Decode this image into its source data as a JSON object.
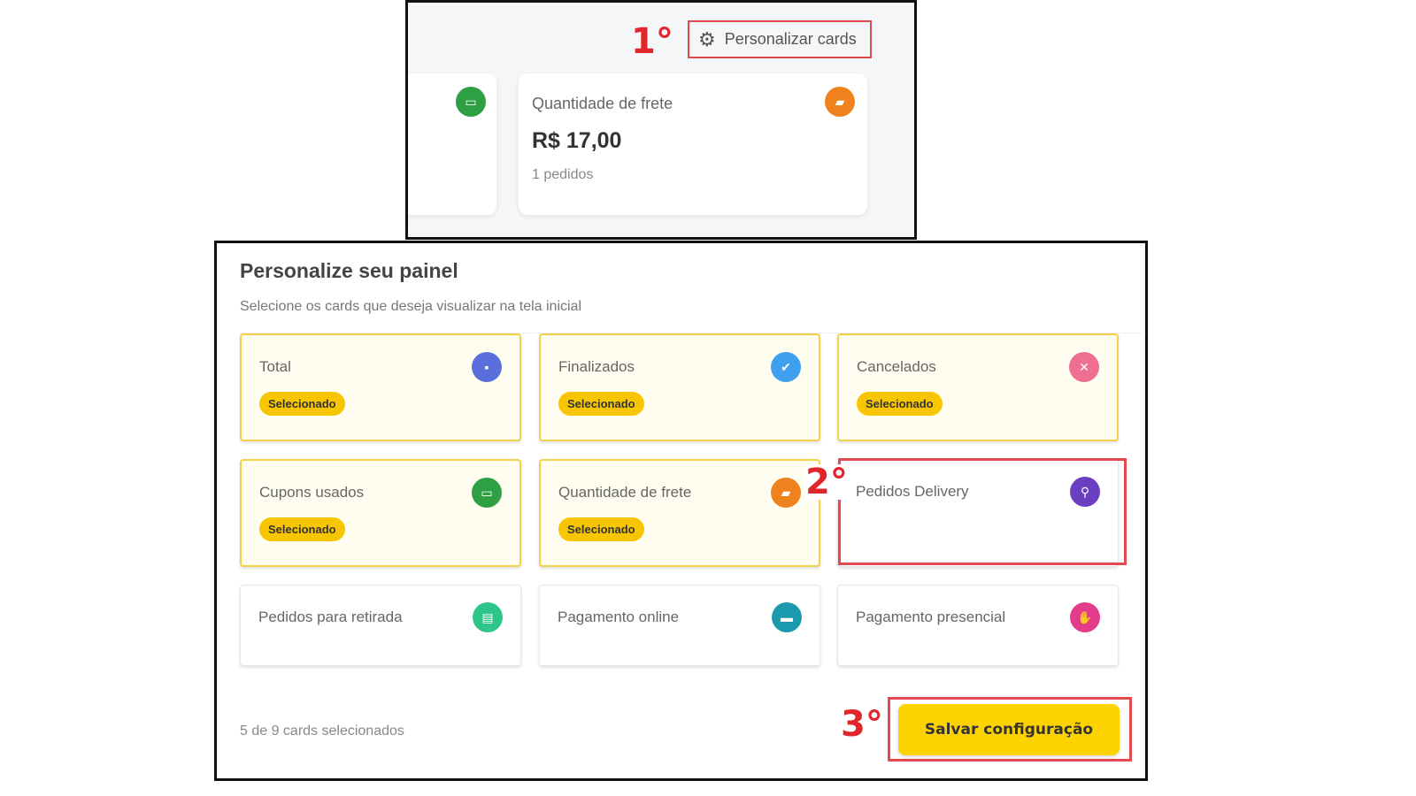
{
  "steps": {
    "s1": "1°",
    "s2": "2°",
    "s3": "3°"
  },
  "dashboard": {
    "customize_button": "Personalizar cards",
    "frete_card": {
      "title": "Quantidade de frete",
      "value": "R$ 17,00",
      "sub": "1 pedidos"
    }
  },
  "modal": {
    "title": "Personalize seu painel",
    "subtitle": "Selecione os cards que deseja visualizar na tela inicial",
    "badge": "Selecionado",
    "cards": [
      {
        "label": "Total",
        "icon": "money-icon",
        "color": "#5b6fdc",
        "selected": true
      },
      {
        "label": "Finalizados",
        "icon": "check-circle-icon",
        "color": "#3fa0ef",
        "selected": true
      },
      {
        "label": "Cancelados",
        "icon": "cancel-icon",
        "color": "#ef6f93",
        "selected": true
      },
      {
        "label": "Cupons usados",
        "icon": "ticket-icon",
        "color": "#2ea043",
        "selected": true
      },
      {
        "label": "Quantidade de frete",
        "icon": "truck-icon",
        "color": "#f0821e",
        "selected": true
      },
      {
        "label": "Pedidos Delivery",
        "icon": "motorcycle-icon",
        "color": "#6a3fc1",
        "selected": false
      },
      {
        "label": "Pedidos para retirada",
        "icon": "store-icon",
        "color": "#2dc58a",
        "selected": false
      },
      {
        "label": "Pagamento online",
        "icon": "credit-card-icon",
        "color": "#1a9aac",
        "selected": false
      },
      {
        "label": "Pagamento presencial",
        "icon": "hand-money-icon",
        "color": "#e23c8a",
        "selected": false
      }
    ],
    "count_text": "5 de 9 cards selecionados",
    "save_label": "Salvar configuração"
  }
}
